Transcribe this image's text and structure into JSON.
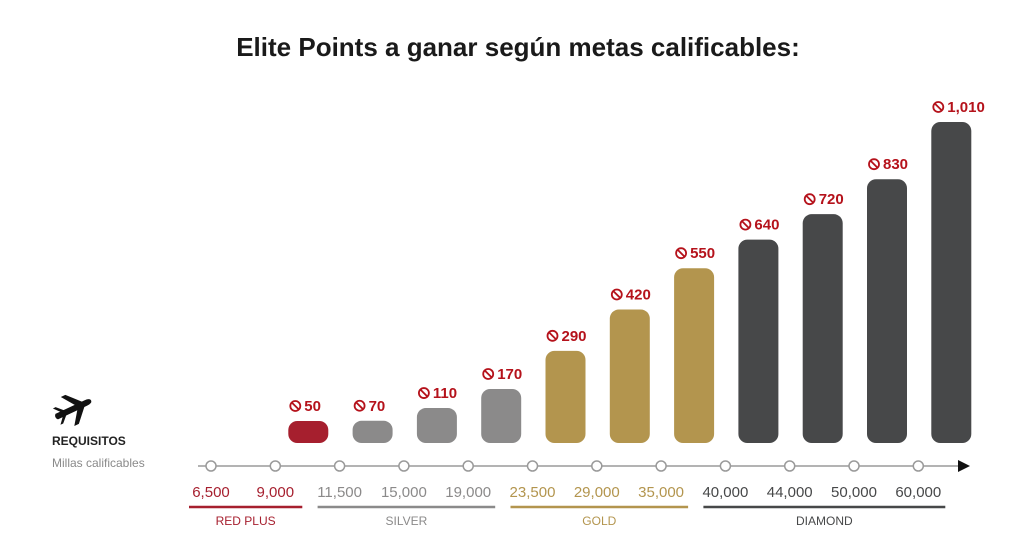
{
  "colors": {
    "red_plus": "#a61f2e",
    "silver": "#8b8a8a",
    "gold": "#b3954e",
    "diamond": "#474849",
    "value_label": "#b5121b",
    "axis": "#9a9a9a",
    "arrow": "#111111"
  },
  "requirements": {
    "icon": "airplane-icon",
    "title": "REQUISITOS",
    "subtitle": "Millas calificables"
  },
  "chart_data": {
    "type": "bar",
    "title": "Elite Points a ganar según metas calificables:",
    "value_icon": "no-sign-icon",
    "categories": [
      "6,500",
      "9,000",
      "11,500",
      "15,000",
      "19,000",
      "23,500",
      "29,000",
      "35,000",
      "40,000",
      "44,000",
      "50,000",
      "60,000"
    ],
    "values": [
      null,
      50,
      70,
      110,
      170,
      290,
      420,
      550,
      640,
      720,
      830,
      1010
    ],
    "value_labels": [
      "",
      "50",
      "70",
      "110",
      "170",
      "290",
      "420",
      "550",
      "640",
      "720",
      "830",
      "1,010"
    ],
    "tiers": [
      {
        "name": "RED PLUS",
        "color": "#a61f2e",
        "from": 0,
        "to": 1
      },
      {
        "name": "SILVER",
        "color": "#8b8a8a",
        "from": 2,
        "to": 4
      },
      {
        "name": "GOLD",
        "color": "#b3954e",
        "from": 5,
        "to": 7
      },
      {
        "name": "DIAMOND",
        "color": "#474849",
        "from": 8,
        "to": 11
      }
    ],
    "ylim": [
      0,
      1010
    ],
    "grid": false
  }
}
